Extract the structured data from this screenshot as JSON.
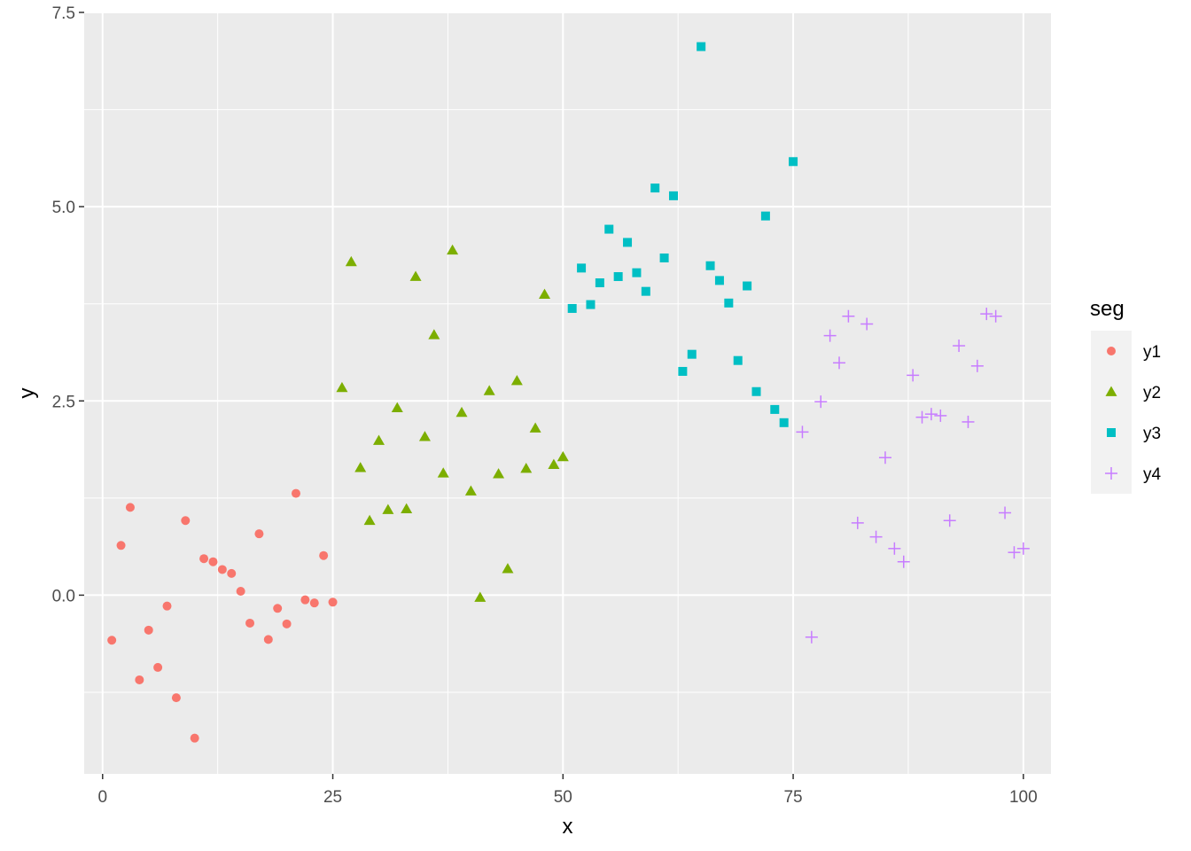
{
  "chart_data": {
    "type": "scatter",
    "xlabel": "x",
    "ylabel": "y",
    "xlim": [
      -2,
      103
    ],
    "ylim": [
      -2.3,
      7.5
    ],
    "x_ticks": [
      0,
      25,
      50,
      75,
      100
    ],
    "x_tick_labels": [
      "0",
      "25",
      "50",
      "75",
      "100"
    ],
    "y_ticks": [
      0,
      2.5,
      5,
      7.5
    ],
    "y_tick_labels": [
      "0.0",
      "2.5",
      "5.0",
      "7.5"
    ],
    "grid": true,
    "background_color": "#ebebeb",
    "legend": {
      "title": "seg",
      "position": "right"
    },
    "series": [
      {
        "name": "y1",
        "shape": "circle",
        "color": "#F8766D",
        "x": [
          1,
          2,
          3,
          4,
          5,
          6,
          7,
          8,
          9,
          10,
          11,
          12,
          13,
          14,
          15,
          16,
          17,
          18,
          19,
          20,
          21,
          22,
          23,
          24,
          25
        ],
        "y": [
          -0.58,
          0.64,
          1.13,
          -1.09,
          -0.45,
          -0.93,
          -0.14,
          -1.32,
          0.96,
          -1.84,
          0.47,
          0.43,
          0.33,
          0.28,
          0.05,
          -0.36,
          0.79,
          -0.57,
          -0.17,
          -0.37,
          1.31,
          -0.06,
          -0.1,
          0.51,
          -0.09
        ]
      },
      {
        "name": "y2",
        "shape": "triangle",
        "color": "#7CAE00",
        "x": [
          26,
          27,
          28,
          29,
          30,
          31,
          32,
          33,
          34,
          35,
          36,
          37,
          38,
          39,
          40,
          41,
          42,
          43,
          44,
          45,
          46,
          47,
          48,
          49,
          50
        ],
        "y": [
          2.67,
          4.29,
          1.64,
          0.96,
          1.99,
          1.1,
          2.41,
          1.11,
          4.1,
          2.04,
          3.35,
          1.57,
          4.44,
          2.35,
          1.34,
          -0.03,
          2.63,
          1.56,
          0.34,
          2.76,
          1.63,
          2.15,
          3.87,
          1.68,
          1.78
        ]
      },
      {
        "name": "y3",
        "shape": "square",
        "color": "#00BFC4",
        "x": [
          51,
          52,
          53,
          54,
          55,
          56,
          57,
          58,
          59,
          60,
          61,
          62,
          63,
          64,
          65,
          66,
          67,
          68,
          69,
          70,
          71,
          72,
          73,
          74,
          75
        ],
        "y": [
          3.69,
          4.21,
          3.74,
          4.02,
          4.71,
          4.1,
          4.54,
          4.15,
          3.91,
          5.24,
          4.34,
          5.14,
          2.88,
          3.1,
          7.06,
          4.24,
          4.05,
          3.76,
          3.02,
          3.98,
          2.62,
          4.88,
          2.39,
          2.22,
          5.58
        ]
      },
      {
        "name": "y4",
        "shape": "plus",
        "color": "#C77CFF",
        "x": [
          76,
          77,
          78,
          79,
          80,
          81,
          82,
          83,
          84,
          85,
          86,
          87,
          88,
          89,
          90,
          91,
          92,
          93,
          94,
          95,
          96,
          97,
          98,
          99,
          100
        ],
        "y": [
          2.1,
          -0.54,
          2.49,
          3.34,
          2.99,
          3.59,
          0.93,
          3.49,
          0.75,
          1.77,
          0.6,
          0.43,
          2.83,
          2.29,
          2.33,
          2.31,
          0.96,
          3.21,
          2.23,
          2.95,
          3.62,
          3.59,
          1.06,
          0.55,
          0.6
        ]
      }
    ]
  }
}
